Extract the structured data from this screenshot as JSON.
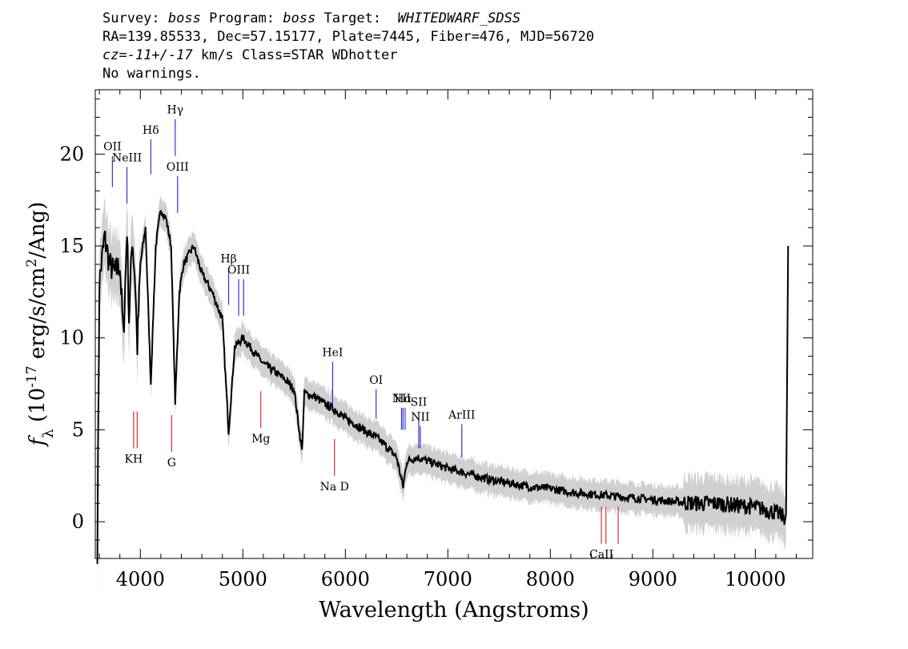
{
  "header": {
    "survey_label": "Survey:",
    "survey": "boss",
    "program_label": "Program:",
    "program": "boss",
    "target_label": "Target:",
    "target": "WHITEDWARF_SDSS",
    "line2": "RA=139.85533, Dec=57.15177, Plate=7445, Fiber=476, MJD=56720",
    "cz_label": "cz=",
    "cz_value": "-11+/-17",
    "cz_unit": " km/s Class=STAR WDhotter",
    "line4": "No warnings."
  },
  "chart_data": {
    "type": "line",
    "xlabel": "Wavelength (Angstroms)",
    "ylabel_prefix": "f",
    "ylabel_sub": "λ",
    "ylabel_main": " (10",
    "ylabel_exp": "-17",
    "ylabel_rest": " erg/s/cm",
    "ylabel_exp2": "2",
    "ylabel_end": "/Ang)",
    "xlim": [
      3560,
      10560
    ],
    "ylim": [
      -2,
      23.5
    ],
    "xticks": [
      4000,
      5000,
      6000,
      7000,
      8000,
      9000,
      10000
    ],
    "xtick_labels": [
      "4000",
      "5000",
      "6000",
      "7000",
      "8000",
      "9000",
      "10000"
    ],
    "yticks": [
      0,
      5,
      10,
      15,
      20
    ],
    "ytick_labels": [
      "0",
      "5",
      "10",
      "15",
      "20"
    ],
    "series": [
      {
        "color": "#000000",
        "x": [
          3580,
          3600,
          3650,
          3700,
          3750,
          3800,
          3835,
          3870,
          3889,
          3920,
          3950,
          3970,
          4000,
          4050,
          4102,
          4150,
          4200,
          4250,
          4300,
          4340,
          4380,
          4420,
          4470,
          4520,
          4600,
          4700,
          4800,
          4861,
          4920,
          5000,
          5100,
          5200,
          5300,
          5400,
          5500,
          5577,
          5600,
          5700,
          5800,
          5900,
          6000,
          6100,
          6200,
          6300,
          6400,
          6500,
          6563,
          6600,
          6700,
          6800,
          7000,
          7200,
          7400,
          7600,
          7800,
          8000,
          8200,
          8400,
          8600,
          8800,
          9000,
          9200,
          9400,
          9600,
          9800,
          10000,
          10200,
          10300,
          10320
        ],
        "y": [
          -1.5,
          13,
          15.5,
          14,
          13.5,
          14,
          10,
          16,
          11,
          15.5,
          13,
          9.5,
          14,
          16,
          7.5,
          15,
          17,
          16.5,
          15,
          6.5,
          12.5,
          14,
          14.5,
          15,
          13.5,
          12.5,
          11,
          4.9,
          9.5,
          10,
          9.3,
          8.6,
          8.2,
          7.8,
          7.2,
          3.8,
          7.0,
          6.8,
          6.4,
          6.1,
          5.6,
          5.3,
          4.9,
          4.6,
          4.1,
          3.5,
          1.9,
          3.3,
          3.5,
          3.3,
          2.9,
          2.6,
          2.3,
          2.1,
          1.9,
          1.8,
          1.6,
          1.5,
          1.4,
          1.3,
          1.2,
          1.1,
          1.0,
          1.0,
          0.9,
          0.8,
          0.5,
          0.2,
          15
        ]
      }
    ],
    "emission_lines": [
      {
        "label": "OII",
        "x": 3727,
        "y1": 18.2,
        "y2": 19.9
      },
      {
        "label": "NeIII",
        "x": 3869,
        "y1": 17.3,
        "y2": 19.3
      },
      {
        "label": "Hδ",
        "x": 4102,
        "y1": 18.9,
        "y2": 20.8
      },
      {
        "label": "Hγ",
        "x": 4340,
        "y1": 19.9,
        "y2": 21.9
      },
      {
        "label": "OIII",
        "x": 4363,
        "y1": 16.8,
        "y2": 18.8
      },
      {
        "label": "Hβ",
        "x": 4861,
        "y1": 11.8,
        "y2": 13.8
      },
      {
        "label": "OIII",
        "x": 4959,
        "y1": 11.2,
        "y2": 13.2
      },
      {
        "label": "",
        "x": 5007,
        "y1": 11.2,
        "y2": 13.2
      },
      {
        "label": "HeI",
        "x": 5876,
        "y1": 6.3,
        "y2": 8.7
      },
      {
        "label": "OI",
        "x": 6300,
        "y1": 5.6,
        "y2": 7.2
      },
      {
        "label": "NII",
        "x": 6548,
        "y1": 5.0,
        "y2": 6.2
      },
      {
        "label": "Hα",
        "x": 6563,
        "y1": 5.0,
        "y2": 6.2
      },
      {
        "label": "",
        "x": 6583,
        "y1": 5.0,
        "y2": 6.2
      },
      {
        "label": "SII",
        "x": 6716,
        "y1": 4.0,
        "y2": 6.0
      },
      {
        "label": "NII",
        "x": 6731,
        "y1": 4.0,
        "y2": 5.2
      },
      {
        "label": "ArIII",
        "x": 7136,
        "y1": 3.5,
        "y2": 5.3
      }
    ],
    "absorption_lines": [
      {
        "label": "KH",
        "x": 3934,
        "y1": 4.0,
        "y2": 6.0
      },
      {
        "label": "",
        "x": 3969,
        "y1": 4.0,
        "y2": 6.0
      },
      {
        "label": "G",
        "x": 4305,
        "y1": 3.8,
        "y2": 5.8
      },
      {
        "label": "Mg",
        "x": 5175,
        "y1": 5.1,
        "y2": 7.1
      },
      {
        "label": "Na D",
        "x": 5894,
        "y1": 2.5,
        "y2": 4.5
      },
      {
        "label": "CaII",
        "x": 8498,
        "y1": -1.2,
        "y2": 0.8
      },
      {
        "label": "",
        "x": 8542,
        "y1": -1.2,
        "y2": 0.8
      },
      {
        "label": "",
        "x": 8662,
        "y1": -1.2,
        "y2": 0.8
      }
    ],
    "colors": {
      "spectrum": "#000000",
      "error_band": "#c8c8c8",
      "emission": "#3333cc",
      "absorption": "#cc3333"
    }
  }
}
